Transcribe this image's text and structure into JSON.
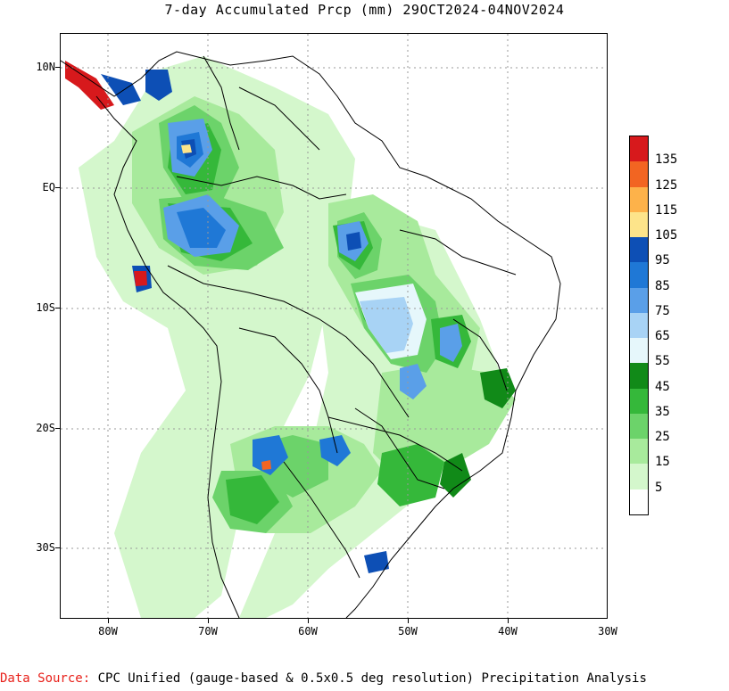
{
  "title": "7-day Accumulated Prcp (mm) 29OCT2024-04NOV2024",
  "axes": {
    "y_labels": [
      "10N",
      "EQ",
      "10S",
      "20S",
      "30S"
    ],
    "x_labels": [
      "80W",
      "70W",
      "60W",
      "50W",
      "40W",
      "30W"
    ]
  },
  "legend": {
    "labels": [
      "135",
      "125",
      "115",
      "105",
      "95",
      "85",
      "75",
      "65",
      "55",
      "45",
      "35",
      "25",
      "15",
      "5"
    ],
    "colors": [
      "#d7191c",
      "#f26522",
      "#fdb24a",
      "#fde48a",
      "#0d4fb5",
      "#1f78d6",
      "#5a9fe8",
      "#a8d3f5",
      "#e6f7fb",
      "#118a18",
      "#35b83a",
      "#6cd36a",
      "#a8ea9c",
      "#d4f7cc",
      "#ffffff"
    ]
  },
  "footer": {
    "source_label": "Data Source:",
    "source_text": " CPC Unified (gauge-based & 0.5x0.5 deg resolution) Precipitation Analysis"
  }
}
